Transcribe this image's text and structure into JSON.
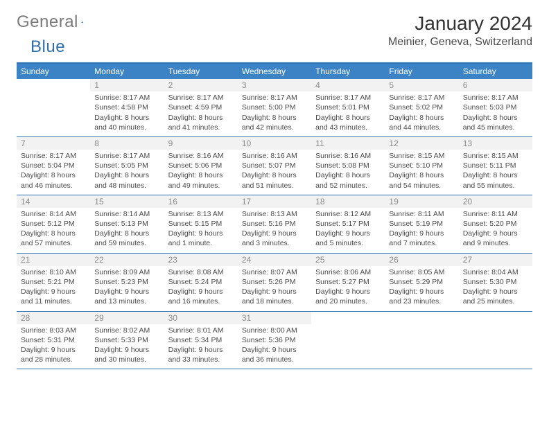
{
  "logo": {
    "text1": "General",
    "text2": "Blue"
  },
  "title": "January 2024",
  "location": "Meinier, Geneva, Switzerland",
  "weekdays": [
    "Sunday",
    "Monday",
    "Tuesday",
    "Wednesday",
    "Thursday",
    "Friday",
    "Saturday"
  ],
  "header_bg": "#3b83c4",
  "header_text": "#ffffff",
  "rule_color": "#2f73b5",
  "daynum_bg": "#f2f2f2",
  "weeks": [
    [
      {
        "n": "",
        "sr": "",
        "ss": "",
        "dl1": "",
        "dl2": ""
      },
      {
        "n": "1",
        "sr": "Sunrise: 8:17 AM",
        "ss": "Sunset: 4:58 PM",
        "dl1": "Daylight: 8 hours",
        "dl2": "and 40 minutes."
      },
      {
        "n": "2",
        "sr": "Sunrise: 8:17 AM",
        "ss": "Sunset: 4:59 PM",
        "dl1": "Daylight: 8 hours",
        "dl2": "and 41 minutes."
      },
      {
        "n": "3",
        "sr": "Sunrise: 8:17 AM",
        "ss": "Sunset: 5:00 PM",
        "dl1": "Daylight: 8 hours",
        "dl2": "and 42 minutes."
      },
      {
        "n": "4",
        "sr": "Sunrise: 8:17 AM",
        "ss": "Sunset: 5:01 PM",
        "dl1": "Daylight: 8 hours",
        "dl2": "and 43 minutes."
      },
      {
        "n": "5",
        "sr": "Sunrise: 8:17 AM",
        "ss": "Sunset: 5:02 PM",
        "dl1": "Daylight: 8 hours",
        "dl2": "and 44 minutes."
      },
      {
        "n": "6",
        "sr": "Sunrise: 8:17 AM",
        "ss": "Sunset: 5:03 PM",
        "dl1": "Daylight: 8 hours",
        "dl2": "and 45 minutes."
      }
    ],
    [
      {
        "n": "7",
        "sr": "Sunrise: 8:17 AM",
        "ss": "Sunset: 5:04 PM",
        "dl1": "Daylight: 8 hours",
        "dl2": "and 46 minutes."
      },
      {
        "n": "8",
        "sr": "Sunrise: 8:17 AM",
        "ss": "Sunset: 5:05 PM",
        "dl1": "Daylight: 8 hours",
        "dl2": "and 48 minutes."
      },
      {
        "n": "9",
        "sr": "Sunrise: 8:16 AM",
        "ss": "Sunset: 5:06 PM",
        "dl1": "Daylight: 8 hours",
        "dl2": "and 49 minutes."
      },
      {
        "n": "10",
        "sr": "Sunrise: 8:16 AM",
        "ss": "Sunset: 5:07 PM",
        "dl1": "Daylight: 8 hours",
        "dl2": "and 51 minutes."
      },
      {
        "n": "11",
        "sr": "Sunrise: 8:16 AM",
        "ss": "Sunset: 5:08 PM",
        "dl1": "Daylight: 8 hours",
        "dl2": "and 52 minutes."
      },
      {
        "n": "12",
        "sr": "Sunrise: 8:15 AM",
        "ss": "Sunset: 5:10 PM",
        "dl1": "Daylight: 8 hours",
        "dl2": "and 54 minutes."
      },
      {
        "n": "13",
        "sr": "Sunrise: 8:15 AM",
        "ss": "Sunset: 5:11 PM",
        "dl1": "Daylight: 8 hours",
        "dl2": "and 55 minutes."
      }
    ],
    [
      {
        "n": "14",
        "sr": "Sunrise: 8:14 AM",
        "ss": "Sunset: 5:12 PM",
        "dl1": "Daylight: 8 hours",
        "dl2": "and 57 minutes."
      },
      {
        "n": "15",
        "sr": "Sunrise: 8:14 AM",
        "ss": "Sunset: 5:13 PM",
        "dl1": "Daylight: 8 hours",
        "dl2": "and 59 minutes."
      },
      {
        "n": "16",
        "sr": "Sunrise: 8:13 AM",
        "ss": "Sunset: 5:15 PM",
        "dl1": "Daylight: 9 hours",
        "dl2": "and 1 minute."
      },
      {
        "n": "17",
        "sr": "Sunrise: 8:13 AM",
        "ss": "Sunset: 5:16 PM",
        "dl1": "Daylight: 9 hours",
        "dl2": "and 3 minutes."
      },
      {
        "n": "18",
        "sr": "Sunrise: 8:12 AM",
        "ss": "Sunset: 5:17 PM",
        "dl1": "Daylight: 9 hours",
        "dl2": "and 5 minutes."
      },
      {
        "n": "19",
        "sr": "Sunrise: 8:11 AM",
        "ss": "Sunset: 5:19 PM",
        "dl1": "Daylight: 9 hours",
        "dl2": "and 7 minutes."
      },
      {
        "n": "20",
        "sr": "Sunrise: 8:11 AM",
        "ss": "Sunset: 5:20 PM",
        "dl1": "Daylight: 9 hours",
        "dl2": "and 9 minutes."
      }
    ],
    [
      {
        "n": "21",
        "sr": "Sunrise: 8:10 AM",
        "ss": "Sunset: 5:21 PM",
        "dl1": "Daylight: 9 hours",
        "dl2": "and 11 minutes."
      },
      {
        "n": "22",
        "sr": "Sunrise: 8:09 AM",
        "ss": "Sunset: 5:23 PM",
        "dl1": "Daylight: 9 hours",
        "dl2": "and 13 minutes."
      },
      {
        "n": "23",
        "sr": "Sunrise: 8:08 AM",
        "ss": "Sunset: 5:24 PM",
        "dl1": "Daylight: 9 hours",
        "dl2": "and 16 minutes."
      },
      {
        "n": "24",
        "sr": "Sunrise: 8:07 AM",
        "ss": "Sunset: 5:26 PM",
        "dl1": "Daylight: 9 hours",
        "dl2": "and 18 minutes."
      },
      {
        "n": "25",
        "sr": "Sunrise: 8:06 AM",
        "ss": "Sunset: 5:27 PM",
        "dl1": "Daylight: 9 hours",
        "dl2": "and 20 minutes."
      },
      {
        "n": "26",
        "sr": "Sunrise: 8:05 AM",
        "ss": "Sunset: 5:29 PM",
        "dl1": "Daylight: 9 hours",
        "dl2": "and 23 minutes."
      },
      {
        "n": "27",
        "sr": "Sunrise: 8:04 AM",
        "ss": "Sunset: 5:30 PM",
        "dl1": "Daylight: 9 hours",
        "dl2": "and 25 minutes."
      }
    ],
    [
      {
        "n": "28",
        "sr": "Sunrise: 8:03 AM",
        "ss": "Sunset: 5:31 PM",
        "dl1": "Daylight: 9 hours",
        "dl2": "and 28 minutes."
      },
      {
        "n": "29",
        "sr": "Sunrise: 8:02 AM",
        "ss": "Sunset: 5:33 PM",
        "dl1": "Daylight: 9 hours",
        "dl2": "and 30 minutes."
      },
      {
        "n": "30",
        "sr": "Sunrise: 8:01 AM",
        "ss": "Sunset: 5:34 PM",
        "dl1": "Daylight: 9 hours",
        "dl2": "and 33 minutes."
      },
      {
        "n": "31",
        "sr": "Sunrise: 8:00 AM",
        "ss": "Sunset: 5:36 PM",
        "dl1": "Daylight: 9 hours",
        "dl2": "and 36 minutes."
      },
      {
        "n": "",
        "sr": "",
        "ss": "",
        "dl1": "",
        "dl2": ""
      },
      {
        "n": "",
        "sr": "",
        "ss": "",
        "dl1": "",
        "dl2": ""
      },
      {
        "n": "",
        "sr": "",
        "ss": "",
        "dl1": "",
        "dl2": ""
      }
    ]
  ]
}
